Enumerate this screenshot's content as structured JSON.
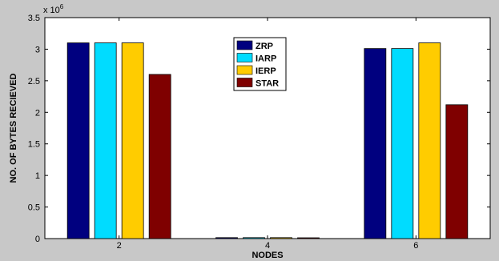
{
  "chart_data": {
    "type": "bar",
    "title": "",
    "xlabel": "NODES",
    "ylabel": "NO. OF BYTES RECIEVED",
    "y_multiplier_label": "x 10",
    "y_multiplier_exponent": "6",
    "categories": [
      "2",
      "4",
      "6"
    ],
    "ylim": [
      0,
      3.5
    ],
    "yticks": [
      "0",
      "0.5",
      "1",
      "1.5",
      "2",
      "2.5",
      "3",
      "3.5"
    ],
    "grid": false,
    "legend_position": "top-center",
    "series": [
      {
        "name": "ZRP",
        "color": "#00007f",
        "values": [
          3.1,
          0.015,
          3.01
        ]
      },
      {
        "name": "IARP",
        "color": "#00dcff",
        "values": [
          3.1,
          0.015,
          3.01
        ]
      },
      {
        "name": "IERP",
        "color": "#ffcc00",
        "values": [
          3.1,
          0.015,
          3.1
        ]
      },
      {
        "name": "STAR",
        "color": "#7f0000",
        "values": [
          2.6,
          0.01,
          2.12
        ]
      }
    ]
  }
}
